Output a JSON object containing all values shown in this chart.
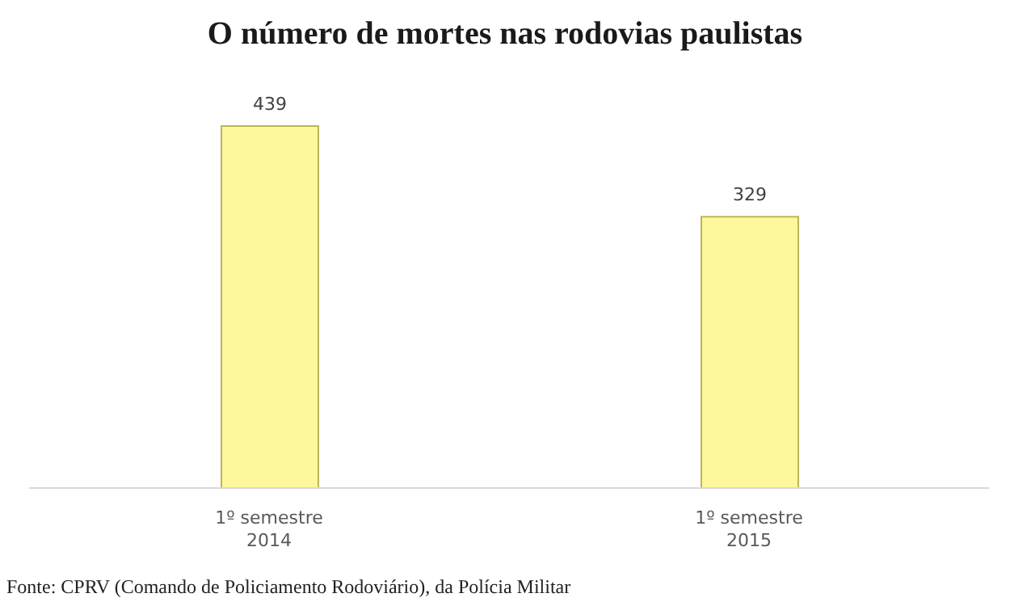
{
  "chart_data": {
    "type": "bar",
    "title": "O número de mortes nas rodovias paulistas",
    "categories": [
      "1º semestre 2014",
      "1º semestre 2015"
    ],
    "values": [
      439,
      329
    ],
    "color": "#fdf89c",
    "data_labels": true,
    "grid": false,
    "legend": false,
    "annotations": [
      "Fonte: CPRV (Comando de Policiamento Rodoviário), da Polícia Militar"
    ]
  }
}
